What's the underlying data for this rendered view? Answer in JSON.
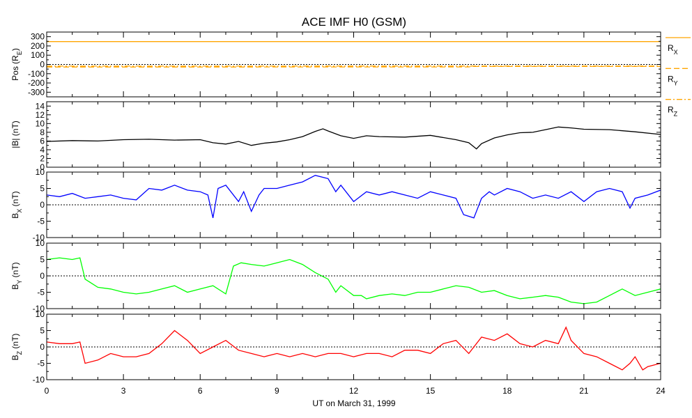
{
  "chart_data": {
    "type": "line",
    "title": "ACE IMF H0 (GSM)",
    "xlabel": "UT on March 31, 1999",
    "xlim": [
      0,
      24
    ],
    "xticks": [
      0,
      3,
      6,
      9,
      12,
      15,
      18,
      21,
      24
    ],
    "xtick_labels": [
      "0",
      "3",
      "6",
      "9",
      "12",
      "15",
      "18",
      "21",
      "24"
    ],
    "panels": [
      {
        "id": "pos",
        "ylabel": "Pos (R",
        "ylabel_sub": "E",
        "ylabel_suffix": ")",
        "ylim": [
          -350,
          350
        ],
        "yticks": [
          -300,
          -200,
          -100,
          0,
          100,
          200,
          300
        ],
        "ytick_labels": [
          "-300",
          "-200",
          "-100",
          "0",
          "100",
          "200",
          "300"
        ],
        "zero_line": true,
        "series": [
          {
            "name": "RX",
            "label": "R",
            "sub": "X",
            "color": "#ffa500",
            "dash": "solid",
            "x": [
              0,
              6,
              12,
              18,
              24
            ],
            "y": [
              247,
              247,
              247,
              247,
              247
            ]
          },
          {
            "name": "RY",
            "label": "R",
            "sub": "Y",
            "color": "#ffa500",
            "dash": "dashed",
            "x": [
              0,
              6,
              12,
              16.5,
              16.6,
              24
            ],
            "y": [
              -28,
              -28,
              -27,
              -27,
              -22,
              -22
            ]
          },
          {
            "name": "RZ",
            "label": "R",
            "sub": "Z",
            "color": "#ffa500",
            "dash": "dashdot",
            "x": [
              0,
              6,
              12,
              18,
              24
            ],
            "y": [
              -18,
              -18,
              -17,
              -17,
              -17
            ]
          }
        ]
      },
      {
        "id": "bmag",
        "ylabel": "|B| (nT)",
        "ylim": [
          0,
          15
        ],
        "yticks": [
          0,
          2,
          4,
          6,
          8,
          10,
          12,
          14
        ],
        "ytick_labels": [
          "0",
          "2",
          "4",
          "6",
          "8",
          "10",
          "12",
          "14"
        ],
        "zero_line": false,
        "series": [
          {
            "name": "|B|",
            "color": "#000000",
            "x": [
              0,
              1,
              2,
              3,
              4,
              5,
              6,
              6.5,
              7,
              7.5,
              8,
              8.5,
              9,
              9.5,
              10,
              10.5,
              10.8,
              11,
              11.5,
              12,
              12.5,
              13,
              14,
              15,
              16,
              16.5,
              16.8,
              17,
              17.5,
              18,
              18.5,
              19,
              19.5,
              20,
              20.5,
              21,
              22,
              23,
              24
            ],
            "y": [
              5.9,
              6.1,
              6.0,
              6.3,
              6.4,
              6.2,
              6.3,
              5.6,
              5.3,
              5.9,
              5.0,
              5.5,
              5.8,
              6.3,
              7.0,
              8.2,
              8.8,
              8.3,
              7.2,
              6.6,
              7.2,
              7.0,
              6.9,
              7.3,
              6.3,
              5.6,
              4.2,
              5.4,
              6.7,
              7.4,
              7.9,
              8.0,
              8.6,
              9.2,
              9.0,
              8.7,
              8.6,
              8.1,
              7.5
            ]
          }
        ]
      },
      {
        "id": "bx",
        "ylabel": "B",
        "ylabel_sub": "X",
        "ylabel_suffix": " (nT)",
        "ylim": [
          -10,
          10
        ],
        "yticks": [
          -10,
          -5,
          0,
          5,
          10
        ],
        "ytick_labels": [
          "-10",
          "-5",
          "0",
          "5",
          "10"
        ],
        "zero_line": true,
        "series": [
          {
            "name": "BX",
            "color": "#0000ff",
            "x": [
              0,
              0.5,
              1,
              1.5,
              2,
              2.5,
              3,
              3.5,
              4,
              4.5,
              5,
              5.5,
              6,
              6.3,
              6.5,
              6.7,
              7,
              7.5,
              7.7,
              8,
              8.3,
              8.5,
              9,
              9.5,
              10,
              10.5,
              11,
              11.3,
              11.5,
              12,
              12.5,
              13,
              13.5,
              14,
              14.5,
              15,
              15.5,
              16,
              16.3,
              16.7,
              17,
              17.3,
              17.5,
              18,
              18.5,
              19,
              19.5,
              20,
              20.5,
              21,
              21.5,
              22,
              22.5,
              22.8,
              23,
              23.5,
              24
            ],
            "y": [
              3.0,
              2.5,
              3.5,
              2.0,
              2.5,
              3.0,
              2.0,
              1.5,
              5.0,
              4.5,
              6.0,
              4.5,
              4.0,
              3.0,
              -4.0,
              5.0,
              6.0,
              1.0,
              4.0,
              -2.0,
              3.0,
              5.0,
              5.0,
              6.0,
              7.0,
              9.0,
              8.0,
              4.0,
              6.0,
              1.0,
              4.0,
              3.0,
              4.0,
              3.0,
              2.0,
              4.0,
              3.0,
              2.0,
              -3.0,
              -4.0,
              2.0,
              4.0,
              3.0,
              5.0,
              4.0,
              2.0,
              3.0,
              2.0,
              4.0,
              1.0,
              4.0,
              5.0,
              4.0,
              -1.0,
              2.0,
              3.0,
              4.5
            ]
          }
        ]
      },
      {
        "id": "by",
        "ylabel": "B",
        "ylabel_sub": "Y",
        "ylabel_suffix": " (nT)",
        "ylim": [
          -10,
          10
        ],
        "yticks": [
          -10,
          -5,
          0,
          5,
          10
        ],
        "ytick_labels": [
          "-10",
          "-5",
          "0",
          "5",
          "10"
        ],
        "zero_line": true,
        "series": [
          {
            "name": "BY",
            "color": "#00ff00",
            "x": [
              0,
              0.5,
              1,
              1.3,
              1.5,
              2,
              2.5,
              3,
              3.5,
              4,
              4.5,
              5,
              5.5,
              6,
              6.5,
              7,
              7.3,
              7.6,
              8,
              8.5,
              9,
              9.5,
              10,
              10.5,
              11,
              11.3,
              11.5,
              12,
              12.3,
              12.5,
              13,
              13.5,
              14,
              14.5,
              15,
              15.5,
              16,
              16.5,
              17,
              17.5,
              18,
              18.5,
              19,
              19.5,
              20,
              20.5,
              21,
              21.5,
              22,
              22.5,
              23,
              23.5,
              24
            ],
            "y": [
              5.0,
              5.5,
              5.0,
              5.5,
              -1.0,
              -3.5,
              -4.0,
              -5.0,
              -5.5,
              -5.0,
              -4.0,
              -3.0,
              -5.0,
              -4.0,
              -3.0,
              -5.5,
              3.0,
              4.0,
              3.5,
              3.0,
              4.0,
              5.0,
              3.5,
              1.0,
              -1.0,
              -5.0,
              -3.0,
              -6.0,
              -6.0,
              -7.0,
              -6.0,
              -5.5,
              -6.0,
              -5.0,
              -5.0,
              -4.0,
              -3.0,
              -3.5,
              -5.0,
              -4.5,
              -6.0,
              -7.0,
              -6.5,
              -6.0,
              -6.5,
              -8.0,
              -8.5,
              -8.0,
              -6.0,
              -4.0,
              -6.0,
              -5.0,
              -4.0
            ]
          }
        ]
      },
      {
        "id": "bz",
        "ylabel": "B",
        "ylabel_sub": "Z",
        "ylabel_suffix": " (nT)",
        "ylim": [
          -10,
          10
        ],
        "yticks": [
          -10,
          -5,
          0,
          5,
          10
        ],
        "ytick_labels": [
          "-10",
          "-5",
          "0",
          "5",
          "10"
        ],
        "zero_line": true,
        "series": [
          {
            "name": "BZ",
            "color": "#ff0000",
            "x": [
              0,
              0.5,
              1,
              1.3,
              1.5,
              2,
              2.5,
              3,
              3.5,
              4,
              4.5,
              5,
              5.5,
              6,
              6.5,
              7,
              7.5,
              8,
              8.5,
              9,
              9.5,
              10,
              10.5,
              11,
              11.5,
              12,
              12.5,
              13,
              13.5,
              14,
              14.5,
              15,
              15.5,
              16,
              16.5,
              17,
              17.5,
              18,
              18.5,
              19,
              19.5,
              20,
              20.3,
              20.5,
              21,
              21.5,
              22,
              22.5,
              22.8,
              23,
              23.3,
              23.5,
              24
            ],
            "y": [
              1.5,
              1.0,
              1.0,
              1.5,
              -5.0,
              -4.0,
              -2.0,
              -3.0,
              -3.0,
              -2.0,
              1.0,
              5.0,
              2.0,
              -2.0,
              0.0,
              2.0,
              -1.0,
              -2.0,
              -3.0,
              -2.0,
              -3.0,
              -2.0,
              -3.0,
              -2.0,
              -2.0,
              -3.0,
              -2.0,
              -2.0,
              -3.0,
              -1.0,
              -1.0,
              -2.0,
              1.0,
              2.0,
              -2.0,
              3.0,
              2.0,
              4.0,
              1.0,
              0.0,
              2.0,
              1.0,
              6.0,
              2.0,
              -2.0,
              -3.0,
              -5.0,
              -7.0,
              -5.0,
              -3.0,
              -7.0,
              -6.0,
              -5.0
            ]
          }
        ]
      }
    ]
  }
}
